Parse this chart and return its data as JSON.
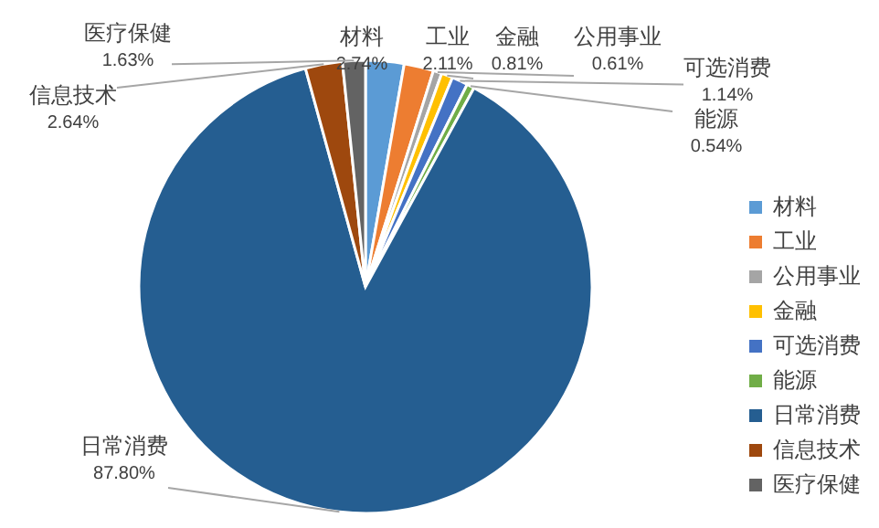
{
  "chart_data": {
    "type": "pie",
    "categories": [
      "材料",
      "工业",
      "公用事业",
      "金融",
      "可选消费",
      "能源",
      "日常消费",
      "信息技术",
      "医疗保健"
    ],
    "values": [
      2.74,
      2.11,
      0.61,
      0.81,
      1.14,
      0.54,
      87.8,
      2.64,
      1.63
    ],
    "value_labels": [
      "2.74%",
      "2.11%",
      "0.61%",
      "0.81%",
      "1.14%",
      "0.54%",
      "87.80%",
      "2.64%",
      "1.63%"
    ],
    "colors": [
      "#5b9bd5",
      "#ed7d31",
      "#a5a5a5",
      "#ffc000",
      "#4472c4",
      "#70ad47",
      "#255e91",
      "#9e480e",
      "#636363"
    ],
    "legend": "right"
  }
}
